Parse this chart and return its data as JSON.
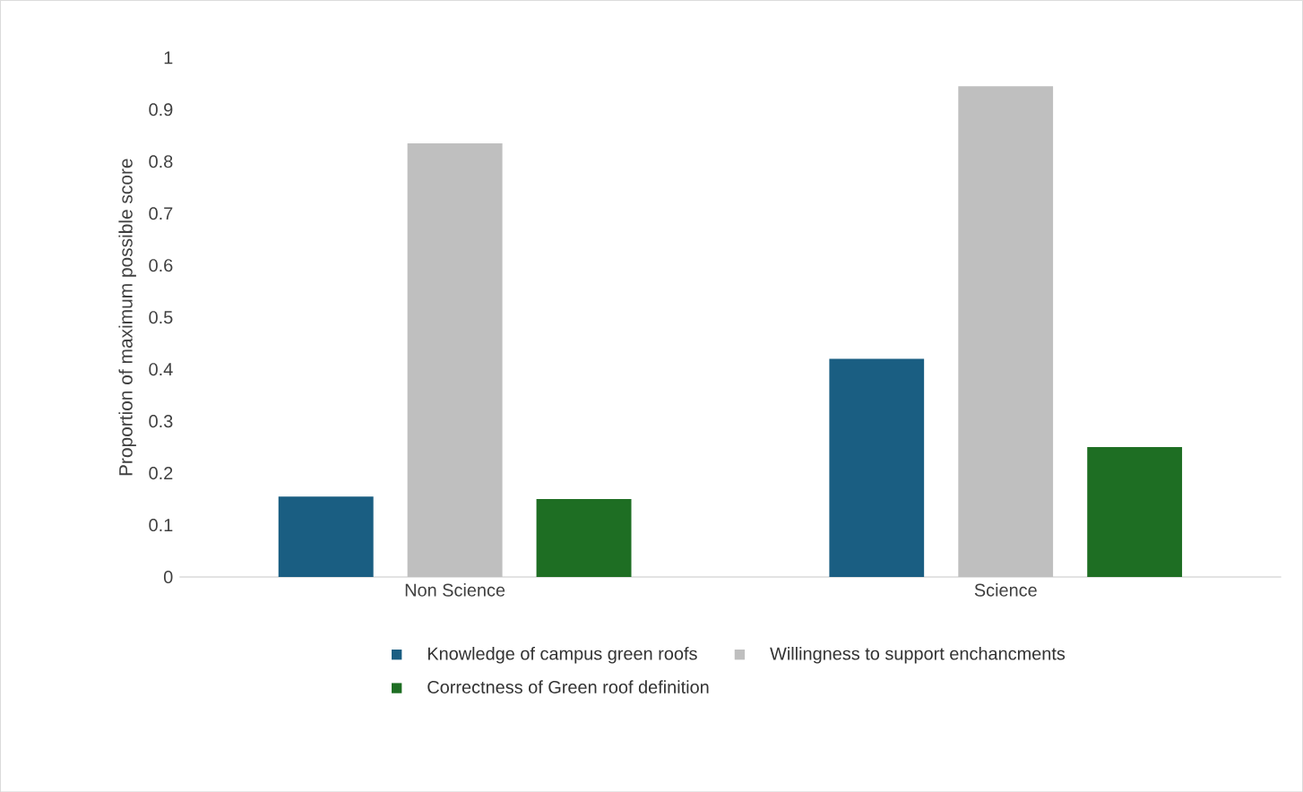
{
  "chart_data": {
    "type": "bar",
    "ylabel": "Proportion of maximum possible score",
    "categories": [
      "Non Science",
      "Science"
    ],
    "series": [
      {
        "name": "Knowledge of campus green roofs",
        "color": "#1a5e82",
        "values": [
          0.155,
          0.42
        ]
      },
      {
        "name": "Willingness to support enchancments",
        "color": "#bfbfbf",
        "values": [
          0.835,
          0.945
        ]
      },
      {
        "name": "Correctness of Green roof definition",
        "color": "#1e6e23",
        "values": [
          0.15,
          0.25
        ]
      }
    ],
    "ylim": [
      0,
      1
    ],
    "yticks": [
      0,
      0.1,
      0.2,
      0.3,
      0.4,
      0.5,
      0.6,
      0.7,
      0.8,
      0.9,
      1
    ],
    "legend": "bottom"
  }
}
